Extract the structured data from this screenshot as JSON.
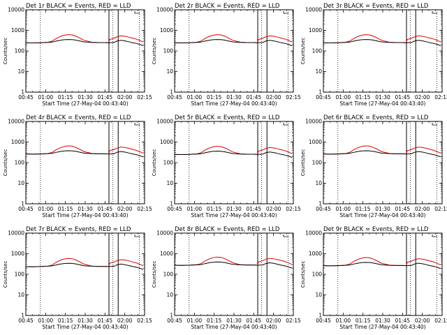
{
  "chart_data": {
    "shared": {
      "type": "line",
      "y_scale": "log",
      "ylim": [
        1,
        10000
      ],
      "y_ticks": [
        1,
        10,
        100,
        1000,
        10000
      ],
      "x_range_minutes": [
        45,
        135
      ],
      "x_ticks_minutes": [
        45,
        60,
        75,
        90,
        105,
        120,
        135
      ],
      "x_tick_labels": [
        "00:45",
        "01:00",
        "01:15",
        "01:30",
        "01:45",
        "02:00",
        "02:15"
      ],
      "xlabel": "Start Time (27-May-04 00:43:40)",
      "ylabel": "Counts/sec",
      "grid": false,
      "dotted_vlines_minutes": [
        56,
        111,
        131
      ],
      "solid_vlines_minutes": [
        108,
        115
      ],
      "series_colors": {
        "events": "#000000",
        "lld": "#e00000"
      }
    },
    "panels": [
      {
        "title": "Det 1r BLACK = Events, RED = LLD",
        "base": 1.0
      },
      {
        "title": "Det 2r BLACK = Events, RED = LLD",
        "base": 1.0
      },
      {
        "title": "Det 3r BLACK = Events, RED = LLD",
        "base": 1.0
      },
      {
        "title": "Det 4r BLACK = Events, RED = LLD",
        "base": 1.05
      },
      {
        "title": "Det 5r BLACK = Events, RED = LLD",
        "base": 1.0
      },
      {
        "title": "Det 6r BLACK = Events, RED = LLD",
        "base": 1.05
      },
      {
        "title": "Det 7r BLACK = Events, RED = LLD",
        "base": 0.95
      },
      {
        "title": "Det 8r BLACK = Events, RED = LLD",
        "base": 1.1
      },
      {
        "title": "Det 9r BLACK = Events, RED = LLD",
        "base": 1.05
      }
    ],
    "curve_template": {
      "x_minutes": [
        44,
        50,
        56,
        62,
        65,
        68,
        71,
        74,
        77,
        80,
        83,
        86,
        89,
        95,
        100,
        105,
        108,
        108.5,
        112,
        114,
        117,
        120,
        123,
        126,
        129,
        132,
        134
      ],
      "events": [
        250,
        245,
        250,
        260,
        270,
        300,
        330,
        350,
        360,
        355,
        335,
        305,
        275,
        260,
        255,
        255,
        250,
        250,
        260,
        300,
        330,
        310,
        280,
        250,
        230,
        200,
        180
      ],
      "lld": [
        250,
        245,
        250,
        265,
        300,
        400,
        500,
        580,
        620,
        600,
        520,
        420,
        330,
        265,
        255,
        255,
        250,
        360,
        420,
        480,
        540,
        520,
        470,
        420,
        370,
        310,
        270
      ]
    }
  }
}
